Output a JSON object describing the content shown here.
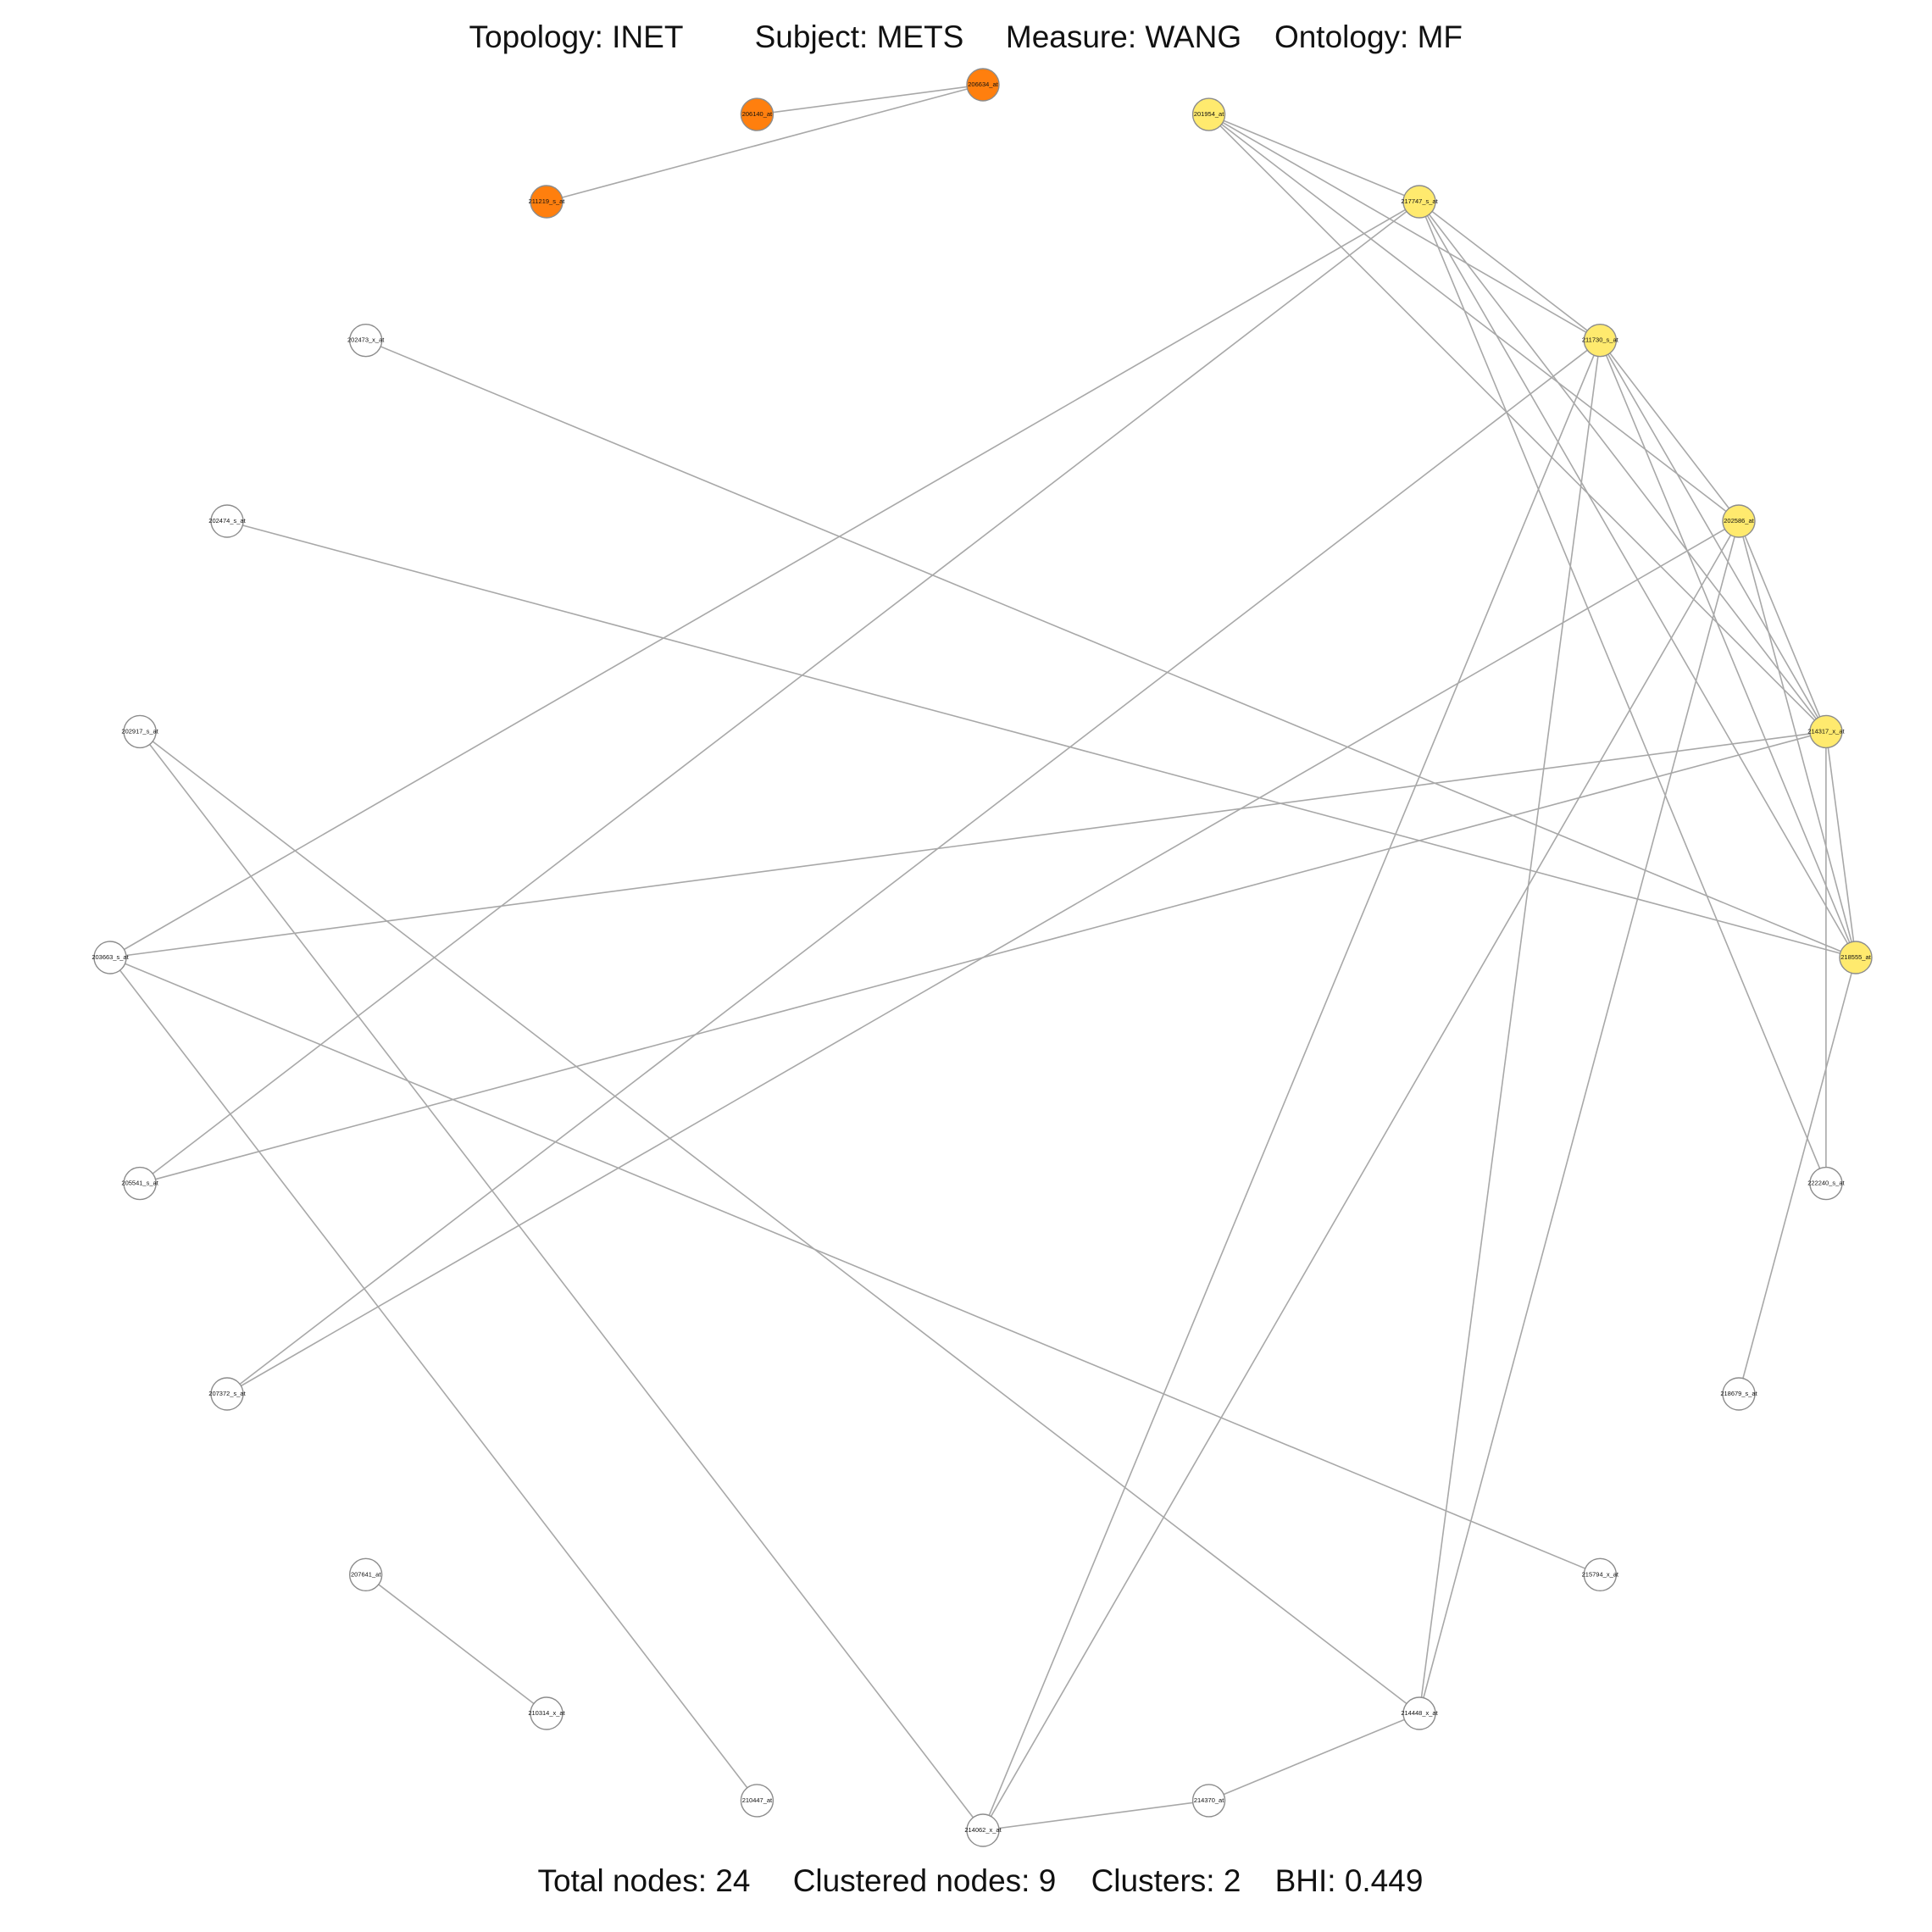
{
  "header": {
    "topology": "Topology: INET",
    "subject": "Subject: METS",
    "measure": "Measure: WANG",
    "ontology": "Ontology: MF"
  },
  "footer": {
    "total_nodes": "Total nodes: 24",
    "clustered_nodes": "Clustered nodes: 9",
    "clusters": "Clusters: 2",
    "bhi": "BHI: 0.449"
  },
  "colors": {
    "cluster_orange": "#ff7f0e",
    "cluster_yellow": "#ffea6e",
    "unclustered": "#ffffff",
    "edge": "#a8a8a8"
  },
  "nodes": [
    {
      "id": "206634_at",
      "label": "206634_at",
      "cluster": "orange"
    },
    {
      "id": "201954_at",
      "label": "201954_at",
      "cluster": "yellow"
    },
    {
      "id": "217747_s_at",
      "label": "217747_s_at",
      "cluster": "yellow"
    },
    {
      "id": "211730_s_at",
      "label": "211730_s_at",
      "cluster": "yellow"
    },
    {
      "id": "202586_at",
      "label": "202586_at",
      "cluster": "yellow"
    },
    {
      "id": "214317_x_at",
      "label": "214317_x_at",
      "cluster": "yellow"
    },
    {
      "id": "218555_at",
      "label": "218555_at",
      "cluster": "yellow"
    },
    {
      "id": "222240_s_at",
      "label": "222240_s_at",
      "cluster": "none"
    },
    {
      "id": "218679_s_at",
      "label": "218679_s_at",
      "cluster": "none"
    },
    {
      "id": "215794_x_at",
      "label": "215794_x_at",
      "cluster": "none"
    },
    {
      "id": "214448_x_at",
      "label": "214448_x_at",
      "cluster": "none"
    },
    {
      "id": "214370_at",
      "label": "214370_at",
      "cluster": "none"
    },
    {
      "id": "214062_x_at",
      "label": "214062_x_at",
      "cluster": "none"
    },
    {
      "id": "210447_at",
      "label": "210447_at",
      "cluster": "none"
    },
    {
      "id": "210314_x_at",
      "label": "210314_x_at",
      "cluster": "none"
    },
    {
      "id": "207641_at",
      "label": "207641_at",
      "cluster": "none"
    },
    {
      "id": "207372_s_at",
      "label": "207372_s_at",
      "cluster": "none"
    },
    {
      "id": "205541_s_at",
      "label": "205541_s_at",
      "cluster": "none"
    },
    {
      "id": "203663_s_at",
      "label": "203663_s_at",
      "cluster": "none"
    },
    {
      "id": "202917_s_at",
      "label": "202917_s_at",
      "cluster": "none"
    },
    {
      "id": "202474_s_at",
      "label": "202474_s_at",
      "cluster": "none"
    },
    {
      "id": "202473_x_at",
      "label": "202473_x_at",
      "cluster": "none"
    },
    {
      "id": "211219_s_at",
      "label": "211219_s_at",
      "cluster": "orange"
    },
    {
      "id": "206140_at",
      "label": "206140_at",
      "cluster": "orange"
    }
  ],
  "edges": [
    [
      "206140_at",
      "206634_at"
    ],
    [
      "211219_s_at",
      "206634_at"
    ],
    [
      "201954_at",
      "217747_s_at"
    ],
    [
      "201954_at",
      "211730_s_at"
    ],
    [
      "201954_at",
      "202586_at"
    ],
    [
      "201954_at",
      "214317_x_at"
    ],
    [
      "217747_s_at",
      "211730_s_at"
    ],
    [
      "217747_s_at",
      "214317_x_at"
    ],
    [
      "217747_s_at",
      "218555_at"
    ],
    [
      "217747_s_at",
      "222240_s_at"
    ],
    [
      "217747_s_at",
      "203663_s_at"
    ],
    [
      "217747_s_at",
      "205541_s_at"
    ],
    [
      "211730_s_at",
      "202586_at"
    ],
    [
      "211730_s_at",
      "214317_x_at"
    ],
    [
      "211730_s_at",
      "218555_at"
    ],
    [
      "211730_s_at",
      "214448_x_at"
    ],
    [
      "211730_s_at",
      "214062_x_at"
    ],
    [
      "211730_s_at",
      "207372_s_at"
    ],
    [
      "202586_at",
      "214317_x_at"
    ],
    [
      "202586_at",
      "218555_at"
    ],
    [
      "202586_at",
      "214448_x_at"
    ],
    [
      "202586_at",
      "214062_x_at"
    ],
    [
      "202586_at",
      "207372_s_at"
    ],
    [
      "214317_x_at",
      "218555_at"
    ],
    [
      "214317_x_at",
      "222240_s_at"
    ],
    [
      "214317_x_at",
      "203663_s_at"
    ],
    [
      "214317_x_at",
      "205541_s_at"
    ],
    [
      "218555_at",
      "218679_s_at"
    ],
    [
      "218555_at",
      "202473_x_at"
    ],
    [
      "218555_at",
      "202474_s_at"
    ],
    [
      "202917_s_at",
      "214448_x_at"
    ],
    [
      "202917_s_at",
      "214062_x_at"
    ],
    [
      "203663_s_at",
      "215794_x_at"
    ],
    [
      "203663_s_at",
      "210447_at"
    ],
    [
      "207641_at",
      "210314_x_at"
    ],
    [
      "214062_x_at",
      "214370_at"
    ],
    [
      "214370_at",
      "214448_x_at"
    ]
  ]
}
